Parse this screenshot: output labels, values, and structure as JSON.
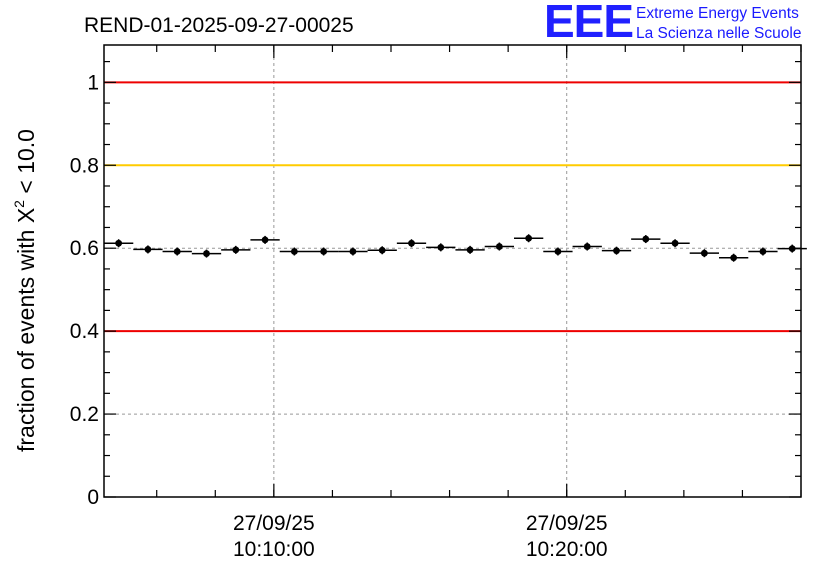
{
  "logo": {
    "mark": "EEE",
    "line1": "Extreme Energy Events",
    "line2": "La Scienza nelle Scuole"
  },
  "colors": {
    "red_line": "#ee0000",
    "yellow_line": "#ffcc00",
    "points": "#000000",
    "grid": "#999999"
  },
  "chart_data": {
    "type": "scatter",
    "title": "REND-01-2025-09-27-00025",
    "ylabel_prefix": "fraction of events with ",
    "ylabel_symbol": "X",
    "ylabel_exp": "2",
    "ylabel_suffix": " < 10.0",
    "ylim": [
      0,
      1.09
    ],
    "yticks": [
      {
        "value": 0,
        "label": "0"
      },
      {
        "value": 0.2,
        "label": "0.2"
      },
      {
        "value": 0.4,
        "label": "0.4"
      },
      {
        "value": 0.6,
        "label": "0.6"
      },
      {
        "value": 0.8,
        "label": "0.8"
      },
      {
        "value": 1,
        "label": "1"
      }
    ],
    "xlim_minutes": [
      4.2,
      28.0
    ],
    "xticks": [
      {
        "minute": 10,
        "date": "27/09/25",
        "time": "10:10:00"
      },
      {
        "minute": 20,
        "date": "27/09/25",
        "time": "10:20:00"
      }
    ],
    "x_minor_step_minutes": 2,
    "reference_lines": [
      {
        "y": 1.0,
        "color": "#ee0000"
      },
      {
        "y": 0.8,
        "color": "#ffcc00"
      },
      {
        "y": 0.4,
        "color": "#ee0000"
      }
    ],
    "bin_width_minutes": 1,
    "points": [
      {
        "x": 4.7,
        "y": 0.612
      },
      {
        "x": 5.7,
        "y": 0.597
      },
      {
        "x": 6.7,
        "y": 0.592
      },
      {
        "x": 7.7,
        "y": 0.587
      },
      {
        "x": 8.7,
        "y": 0.596
      },
      {
        "x": 9.7,
        "y": 0.62
      },
      {
        "x": 10.7,
        "y": 0.592
      },
      {
        "x": 11.7,
        "y": 0.592
      },
      {
        "x": 12.7,
        "y": 0.592
      },
      {
        "x": 13.7,
        "y": 0.595
      },
      {
        "x": 14.7,
        "y": 0.612
      },
      {
        "x": 15.7,
        "y": 0.602
      },
      {
        "x": 16.7,
        "y": 0.596
      },
      {
        "x": 17.7,
        "y": 0.604
      },
      {
        "x": 18.7,
        "y": 0.624
      },
      {
        "x": 19.7,
        "y": 0.592
      },
      {
        "x": 20.7,
        "y": 0.604
      },
      {
        "x": 21.7,
        "y": 0.594
      },
      {
        "x": 22.7,
        "y": 0.622
      },
      {
        "x": 23.7,
        "y": 0.612
      },
      {
        "x": 24.7,
        "y": 0.588
      },
      {
        "x": 25.7,
        "y": 0.577
      },
      {
        "x": 26.7,
        "y": 0.592
      },
      {
        "x": 27.7,
        "y": 0.599
      }
    ]
  }
}
